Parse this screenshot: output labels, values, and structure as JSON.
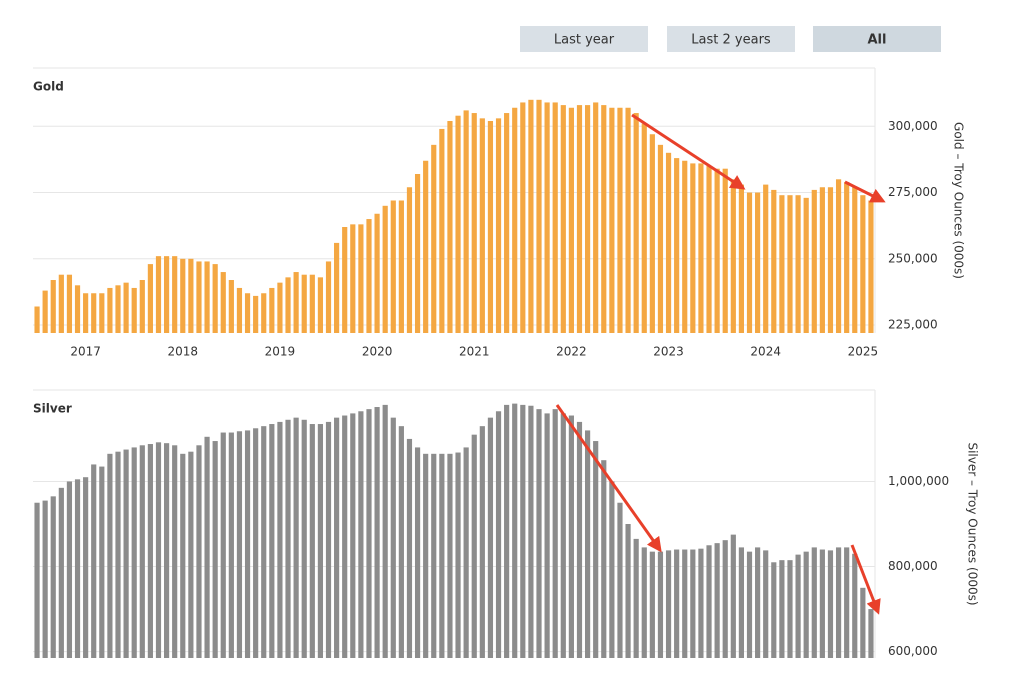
{
  "controls": {
    "buttons": [
      "Last year",
      "Last 2 years",
      "All"
    ],
    "selected": 2
  },
  "chart_data": [
    {
      "type": "bar",
      "title": "Gold",
      "y_label": "Gold – Troy Ounces (000s)",
      "color": "#f4a742",
      "grid": true,
      "categories": [
        null,
        null,
        null,
        null,
        null,
        null,
        "2017",
        null,
        null,
        null,
        null,
        null,
        null,
        null,
        null,
        null,
        null,
        null,
        "2018",
        null,
        null,
        null,
        null,
        null,
        null,
        null,
        null,
        null,
        null,
        null,
        "2019",
        null,
        null,
        null,
        null,
        null,
        null,
        null,
        null,
        null,
        null,
        null,
        "2020",
        null,
        null,
        null,
        null,
        null,
        null,
        null,
        null,
        null,
        null,
        null,
        "2021",
        null,
        null,
        null,
        null,
        null,
        null,
        null,
        null,
        null,
        null,
        null,
        "2022",
        null,
        null,
        null,
        null,
        null,
        null,
        null,
        null,
        null,
        null,
        null,
        "2023",
        null,
        null,
        null,
        null,
        null,
        null,
        null,
        null,
        null,
        null,
        null,
        "2024",
        null,
        null,
        null,
        null,
        null,
        null,
        null,
        null,
        null,
        null,
        null,
        "2025",
        null
      ],
      "values": [
        232000,
        238000,
        242000,
        244000,
        244000,
        240000,
        237000,
        237000,
        237000,
        239000,
        240000,
        241000,
        239000,
        242000,
        248000,
        251000,
        251000,
        251000,
        250000,
        250000,
        249000,
        249000,
        248000,
        245000,
        242000,
        239000,
        237000,
        236000,
        237000,
        239000,
        241000,
        243000,
        245000,
        244000,
        244000,
        243000,
        249000,
        256000,
        262000,
        263000,
        263000,
        265000,
        267000,
        270000,
        272000,
        272000,
        277000,
        282000,
        287000,
        293000,
        299000,
        302000,
        304000,
        306000,
        305000,
        303000,
        302000,
        303000,
        305000,
        307000,
        309000,
        310000,
        310000,
        309000,
        309000,
        308000,
        307000,
        308000,
        308000,
        309000,
        308000,
        307000,
        307000,
        307000,
        305000,
        301000,
        297000,
        293000,
        290000,
        288000,
        287000,
        286000,
        286000,
        285000,
        284000,
        284000,
        280000,
        278000,
        275000,
        275000,
        278000,
        276000,
        274000,
        274000,
        274000,
        273000,
        276000,
        277000,
        277000,
        280000,
        279000,
        277000,
        274000,
        272000
      ],
      "ylim": [
        222000,
        322000
      ],
      "yticks": [
        {
          "value": 225000,
          "label": "225,000"
        },
        {
          "value": 250000,
          "label": "250,000"
        },
        {
          "value": 275000,
          "label": "275,000"
        },
        {
          "value": 300000,
          "label": "300,000"
        }
      ]
    },
    {
      "type": "bar",
      "title": "Silver",
      "y_label": "Silver – Troy Ounces (000s)",
      "color": "#8c8c8c",
      "grid": true,
      "values": [
        950000,
        955000,
        965000,
        985000,
        1000000,
        1005000,
        1010000,
        1040000,
        1035000,
        1065000,
        1070000,
        1075000,
        1080000,
        1085000,
        1088000,
        1092000,
        1090000,
        1085000,
        1065000,
        1070000,
        1085000,
        1105000,
        1095000,
        1115000,
        1115000,
        1118000,
        1120000,
        1125000,
        1130000,
        1135000,
        1140000,
        1145000,
        1150000,
        1145000,
        1135000,
        1135000,
        1140000,
        1150000,
        1155000,
        1160000,
        1165000,
        1170000,
        1175000,
        1180000,
        1150000,
        1130000,
        1100000,
        1080000,
        1065000,
        1065000,
        1065000,
        1065000,
        1068000,
        1080000,
        1110000,
        1130000,
        1150000,
        1165000,
        1180000,
        1183000,
        1180000,
        1178000,
        1170000,
        1160000,
        1170000,
        1160000,
        1155000,
        1140000,
        1120000,
        1095000,
        1050000,
        1000000,
        950000,
        900000,
        865000,
        845000,
        835000,
        835000,
        838000,
        840000,
        840000,
        840000,
        842000,
        850000,
        855000,
        862000,
        875000,
        845000,
        835000,
        845000,
        838000,
        810000,
        815000,
        815000,
        828000,
        835000,
        845000,
        840000,
        838000,
        845000,
        845000,
        830000,
        750000,
        700000
      ],
      "ylim": [
        585000,
        1215000
      ],
      "yticks": [
        {
          "value": 600000,
          "label": "600,000"
        },
        {
          "value": 800000,
          "label": "800,000"
        },
        {
          "value": 1000000,
          "label": "1,000,000"
        }
      ]
    }
  ]
}
